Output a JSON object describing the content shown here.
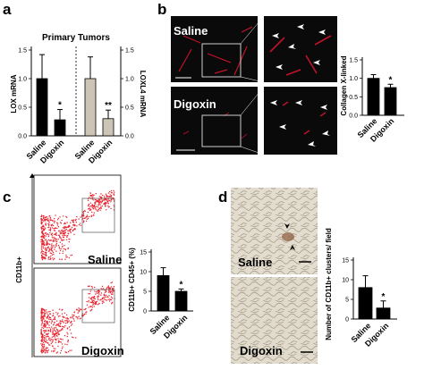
{
  "panels": {
    "a": {
      "letter": "a"
    },
    "b": {
      "letter": "b"
    },
    "c": {
      "letter": "c"
    },
    "d": {
      "letter": "d"
    }
  },
  "panel_a": {
    "title": "Primary Tumors",
    "ylabel_left": "LOX mRNA",
    "ylabel_right": "LOXL4 mRNA",
    "left_ticks": [
      "0.0",
      "0.5",
      "1.0",
      "1.5"
    ],
    "right_ticks": [
      "0.0",
      "0.5",
      "1.0",
      "1.5"
    ],
    "categories": [
      "Saline",
      "Digoxin",
      "Saline",
      "Digoxin"
    ],
    "colors": {
      "dark": "#000000",
      "light": "#ccc4b4"
    }
  },
  "panel_b": {
    "saline_label": "Saline",
    "digoxin_label": "Digoxin",
    "ylabel": "Collagen X-linked",
    "ticks": [
      "0.0",
      "0.5",
      "1.0",
      "1.5"
    ],
    "categories": [
      "Saline",
      "Digoxin"
    ]
  },
  "panel_c": {
    "ylabel_flow": "CD11b+",
    "saline_label": "Saline",
    "digoxin_label": "Digoxin",
    "ylabel": "CD11b+ CD45+ (%)",
    "ticks": [
      "0",
      "5",
      "10",
      "15"
    ],
    "categories": [
      "Saline",
      "Digoxin"
    ]
  },
  "panel_d": {
    "saline_label": "Saline",
    "digoxin_label": "Digoxin",
    "ylabel": "Number of CD11b+ clusters/ field",
    "ticks": [
      "0",
      "5",
      "10",
      "15"
    ],
    "categories": [
      "Saline",
      "Digoxin"
    ]
  },
  "chart_data": [
    {
      "type": "bar",
      "title": "Primary Tumors",
      "categories": [
        "Saline",
        "Digoxin"
      ],
      "ylabel": "LOX mRNA",
      "ylim": [
        0,
        1.5
      ],
      "values": [
        1.0,
        0.28
      ],
      "errors": [
        0.42,
        0.18
      ],
      "significance": [
        "",
        "*"
      ]
    },
    {
      "type": "bar",
      "title": "Primary Tumors",
      "categories": [
        "Saline",
        "Digoxin"
      ],
      "ylabel": "LOXL4 mRNA",
      "ylim": [
        0,
        1.5
      ],
      "values": [
        1.0,
        0.3
      ],
      "errors": [
        0.38,
        0.15
      ],
      "significance": [
        "",
        "**"
      ]
    },
    {
      "type": "bar",
      "categories": [
        "Saline",
        "Digoxin"
      ],
      "ylabel": "Collagen X-linked",
      "ylim": [
        0,
        1.5
      ],
      "values": [
        1.0,
        0.75
      ],
      "errors": [
        0.1,
        0.09
      ],
      "significance": [
        "",
        "*"
      ]
    },
    {
      "type": "bar",
      "categories": [
        "Saline",
        "Digoxin"
      ],
      "ylabel": "CD11b+ CD45+ (%)",
      "ylim": [
        0,
        15
      ],
      "values": [
        9.0,
        5.0
      ],
      "errors": [
        2.0,
        0.6
      ],
      "significance": [
        "",
        "*"
      ]
    },
    {
      "type": "bar",
      "categories": [
        "Saline",
        "Digoxin"
      ],
      "ylabel": "Number of CD11b+ clusters/ field",
      "ylim": [
        0,
        15
      ],
      "values": [
        8.0,
        2.8
      ],
      "errors": [
        3.0,
        1.8
      ],
      "significance": [
        "",
        "*"
      ]
    }
  ]
}
